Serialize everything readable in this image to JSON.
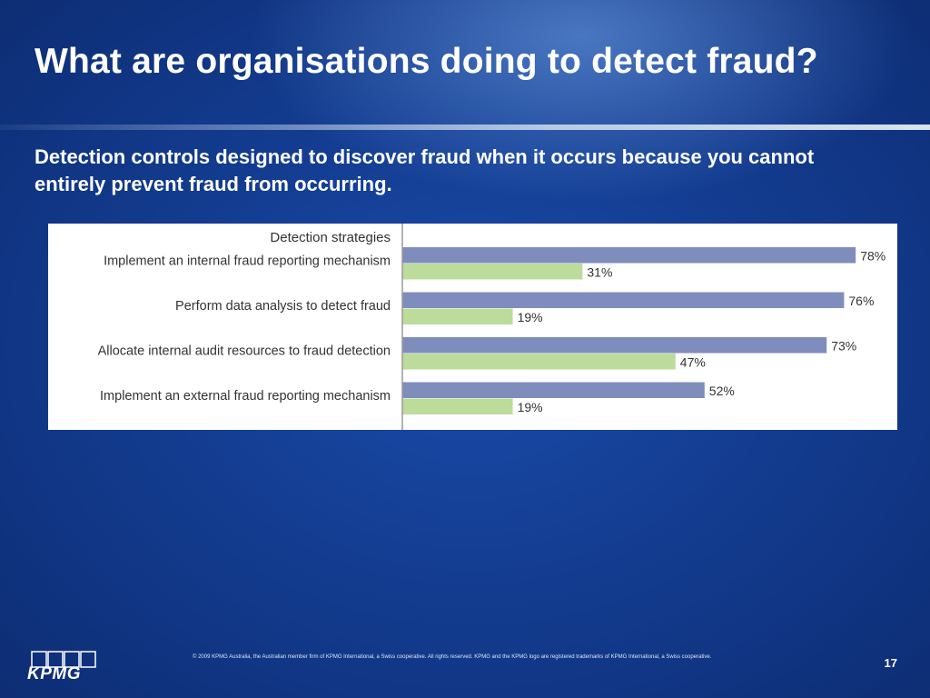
{
  "slide": {
    "title": "What are organisations doing to detect fraud?",
    "subtitle": "Detection controls designed to discover fraud when it occurs because you cannot entirely prevent fraud from occurring."
  },
  "chart_data": {
    "type": "bar",
    "orientation": "horizontal",
    "title": "Detection strategies",
    "categories": [
      "Implement an internal fraud reporting mechanism",
      "Perform data analysis to detect fraud",
      "Allocate internal audit resources to fraud detection",
      "Implement an external fraud reporting mechanism"
    ],
    "series": [
      {
        "values": [
          78,
          76,
          73,
          52
        ],
        "labels": [
          "78%",
          "76%",
          "73%",
          "52%"
        ],
        "color": "#7f8dbd"
      },
      {
        "values": [
          31,
          19,
          47,
          19
        ],
        "labels": [
          "31%",
          "19%",
          "47%",
          "19%"
        ],
        "color": "#bcdc9b"
      }
    ],
    "xlim": [
      0,
      100
    ],
    "grid": false,
    "legend": "none"
  },
  "footer": {
    "logo": "KPMG",
    "copyright": "© 2009 KPMG Australia, the Australian member firm of KPMG International, a Swiss cooperative. All rights reserved. KPMG and the KPMG logo are registered trademarks of KPMG International, a Swiss cooperative.",
    "page_number": "17"
  }
}
